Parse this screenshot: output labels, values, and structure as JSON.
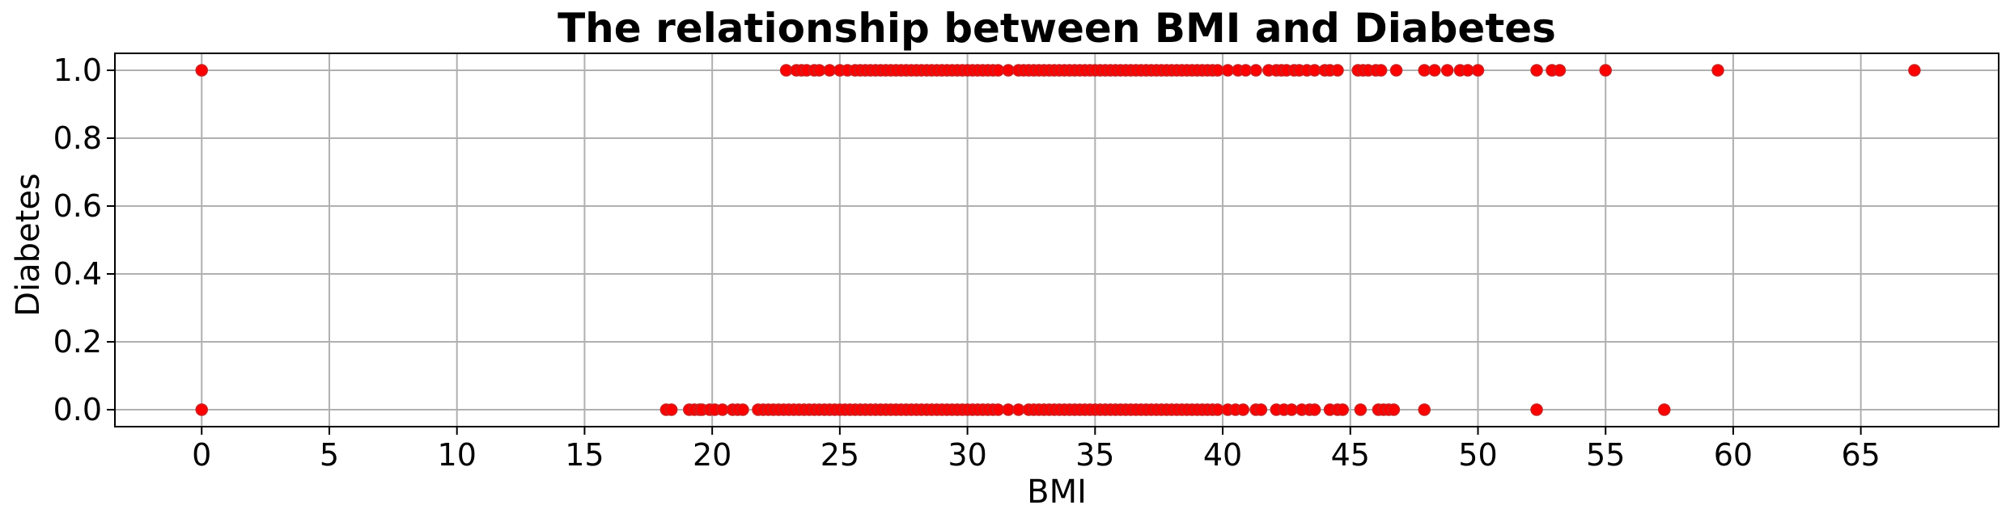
{
  "chart_data": {
    "type": "scatter",
    "title": "The relationship between BMI and Diabetes",
    "xlabel": "BMI",
    "ylabel": "Diabetes",
    "xlim": [
      -3.4,
      70.4
    ],
    "ylim": [
      -0.05,
      1.05
    ],
    "xticks": [
      0,
      5,
      10,
      15,
      20,
      25,
      30,
      35,
      40,
      45,
      50,
      55,
      60,
      65
    ],
    "yticks": [
      0.0,
      0.2,
      0.4,
      0.6,
      0.8,
      1.0
    ],
    "xtick_labels": [
      "0",
      "5",
      "10",
      "15",
      "20",
      "25",
      "30",
      "35",
      "40",
      "45",
      "50",
      "55",
      "60",
      "65"
    ],
    "ytick_labels": [
      "0.0",
      "0.2",
      "0.4",
      "0.6",
      "0.8",
      "1.0"
    ],
    "grid": true,
    "marker_color": "#ff0000",
    "series": [
      {
        "y": 1,
        "x": [
          0,
          22.9,
          23.3,
          23.5,
          23.7,
          24.0,
          24.2,
          24.6,
          25.0,
          25.3,
          25.6,
          25.8,
          26.0,
          26.2,
          26.4,
          26.6,
          26.8,
          27.0,
          27.2,
          27.4,
          27.6,
          27.8,
          28.0,
          28.2,
          28.4,
          28.6,
          28.8,
          29.0,
          29.2,
          29.4,
          29.6,
          29.8,
          30.0,
          30.2,
          30.4,
          30.6,
          30.8,
          31.0,
          31.2,
          31.6,
          32.0,
          32.2,
          32.4,
          32.6,
          32.8,
          33.0,
          33.2,
          33.4,
          33.6,
          33.8,
          34.0,
          34.2,
          34.4,
          34.6,
          34.8,
          35.0,
          35.2,
          35.4,
          35.6,
          35.8,
          36.0,
          36.2,
          36.4,
          36.6,
          36.8,
          37.0,
          37.2,
          37.4,
          37.6,
          37.8,
          38.0,
          38.2,
          38.4,
          38.6,
          38.8,
          39.0,
          39.2,
          39.4,
          39.6,
          39.8,
          40.2,
          40.6,
          40.9,
          41.3,
          41.8,
          42.1,
          42.3,
          42.5,
          42.8,
          43.0,
          43.3,
          43.6,
          44.0,
          44.2,
          44.5,
          45.3,
          45.5,
          45.7,
          46.0,
          46.2,
          46.8,
          47.9,
          48.3,
          48.8,
          49.3,
          49.6,
          50.0,
          52.3,
          52.9,
          53.2,
          55.0,
          59.4,
          67.1
        ]
      },
      {
        "y": 0,
        "x": [
          0,
          18.2,
          18.4,
          19.1,
          19.3,
          19.5,
          19.6,
          19.9,
          20.1,
          20.4,
          20.8,
          21.0,
          21.2,
          21.8,
          22.0,
          22.2,
          22.4,
          22.6,
          22.8,
          23.0,
          23.2,
          23.4,
          23.6,
          23.8,
          24.0,
          24.2,
          24.4,
          24.6,
          24.8,
          25.0,
          25.2,
          25.4,
          25.6,
          25.8,
          26.0,
          26.2,
          26.4,
          26.6,
          26.8,
          27.0,
          27.2,
          27.4,
          27.6,
          27.8,
          28.0,
          28.2,
          28.4,
          28.6,
          28.8,
          29.0,
          29.2,
          29.4,
          29.6,
          29.8,
          30.0,
          30.2,
          30.4,
          30.6,
          30.8,
          31.0,
          31.2,
          31.6,
          32.0,
          32.4,
          32.6,
          32.8,
          33.0,
          33.2,
          33.4,
          33.6,
          33.8,
          34.0,
          34.2,
          34.4,
          34.6,
          34.8,
          35.0,
          35.2,
          35.4,
          35.6,
          35.8,
          36.0,
          36.2,
          36.4,
          36.6,
          36.8,
          37.0,
          37.2,
          37.4,
          37.6,
          37.8,
          38.0,
          38.2,
          38.4,
          38.6,
          38.8,
          39.0,
          39.2,
          39.4,
          39.6,
          39.8,
          40.2,
          40.5,
          40.8,
          41.3,
          41.5,
          42.1,
          42.4,
          42.7,
          43.1,
          43.4,
          43.6,
          44.2,
          44.5,
          44.7,
          45.4,
          46.1,
          46.3,
          46.5,
          46.7,
          47.9,
          52.3,
          57.3
        ]
      }
    ]
  }
}
